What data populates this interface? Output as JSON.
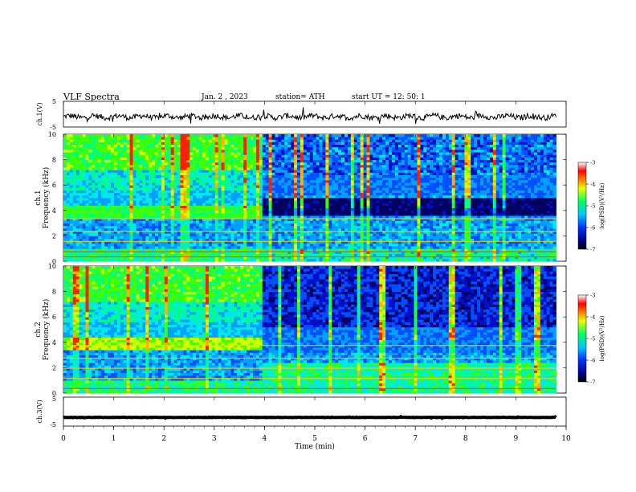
{
  "header": {
    "title": "VLF  Spectra",
    "date": "Jan. 2  , 2023",
    "station": "station= ATH",
    "start_ut": "start  UT  =   12: 50: 1"
  },
  "chart_data": [
    {
      "type": "line",
      "name": "ch1-voltage",
      "ylabel": "ch.1(V)",
      "ylim": [
        -5,
        5
      ],
      "yticks": [
        "5",
        "-5"
      ],
      "x_range_min": [
        0,
        9.8
      ],
      "note_shape": "noisy trace around -1 V"
    },
    {
      "type": "heatmap",
      "name": "ch1-spectrogram",
      "ylabel": "ch.1",
      "ylabel2": "Frequency  (kHz)",
      "ylim": [
        0,
        10
      ],
      "yticks": [
        "0",
        "2",
        "4",
        "6",
        "8",
        "10"
      ],
      "x_range_min": [
        0,
        9.8
      ],
      "transition_min": 3.9,
      "colorbar": {
        "label": "log(PSD)(V²/Hz)",
        "range": [
          -7,
          -3
        ],
        "ticks": [
          "-3",
          "-4",
          "-5",
          "-6",
          "-7"
        ]
      }
    },
    {
      "type": "heatmap",
      "name": "ch2-spectrogram",
      "ylabel": "ch.2",
      "ylabel2": "Frequency  (kHz)",
      "ylim": [
        0,
        10
      ],
      "yticks": [
        "0",
        "2",
        "4",
        "6",
        "8",
        "10"
      ],
      "x_range_min": [
        0,
        9.8
      ],
      "transition_min": 3.9,
      "colorbar": {
        "label": "log(PSD)(V²/Hz)",
        "range": [
          -7,
          -3
        ],
        "ticks": [
          "-3",
          "-4",
          "-5",
          "-6",
          "-7"
        ]
      }
    },
    {
      "type": "line",
      "name": "ch3-voltage",
      "ylabel": "ch.3(V)",
      "ylim": [
        -5,
        5
      ],
      "yticks": [
        "5",
        "-5"
      ],
      "x_range_min": [
        0,
        9.8
      ],
      "note_shape": "flat thick trace near -2 V"
    }
  ],
  "xaxis": {
    "label": "Time  (min)",
    "range": [
      0,
      10
    ],
    "ticks": [
      "0",
      "1",
      "2",
      "3",
      "4",
      "5",
      "6",
      "7",
      "8",
      "9",
      "10"
    ]
  },
  "colors": {
    "trace": "#000000",
    "background": "#ffffff"
  }
}
